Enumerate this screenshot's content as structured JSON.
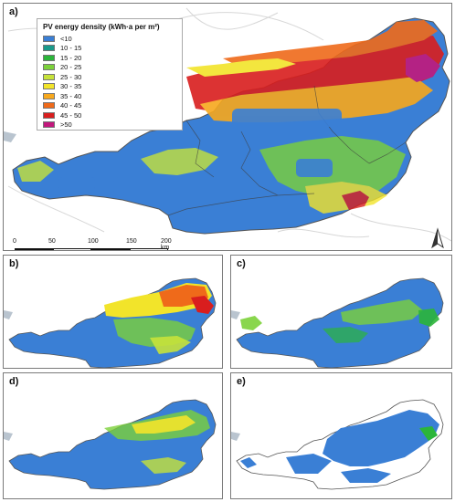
{
  "panels": [
    {
      "id": "a",
      "label": "a)"
    },
    {
      "id": "b",
      "label": "b)"
    },
    {
      "id": "c",
      "label": "c)"
    },
    {
      "id": "d",
      "label": "d)"
    },
    {
      "id": "e",
      "label": "e)"
    }
  ],
  "legend": {
    "title": "PV energy density (kWh·a per m²)",
    "classes": [
      {
        "label": "<10",
        "color": "#3a7fd5"
      },
      {
        "label": "10 - 15",
        "color": "#1a9a8a"
      },
      {
        "label": "15 - 20",
        "color": "#2bb53a"
      },
      {
        "label": "20 - 25",
        "color": "#7cd13a"
      },
      {
        "label": "25 - 30",
        "color": "#c6e23a"
      },
      {
        "label": "30 - 35",
        "color": "#f2e42a"
      },
      {
        "label": "35 - 40",
        "color": "#f7a81d"
      },
      {
        "label": "40 - 45",
        "color": "#ef6a1a"
      },
      {
        "label": "45 - 50",
        "color": "#d91e1e"
      },
      {
        "label": ">50",
        "color": "#c2187c"
      }
    ]
  },
  "scalebar": {
    "ticks": [
      "0",
      "50",
      "100",
      "150",
      "200 km"
    ]
  },
  "north_arrow": "north-arrow-icon"
}
